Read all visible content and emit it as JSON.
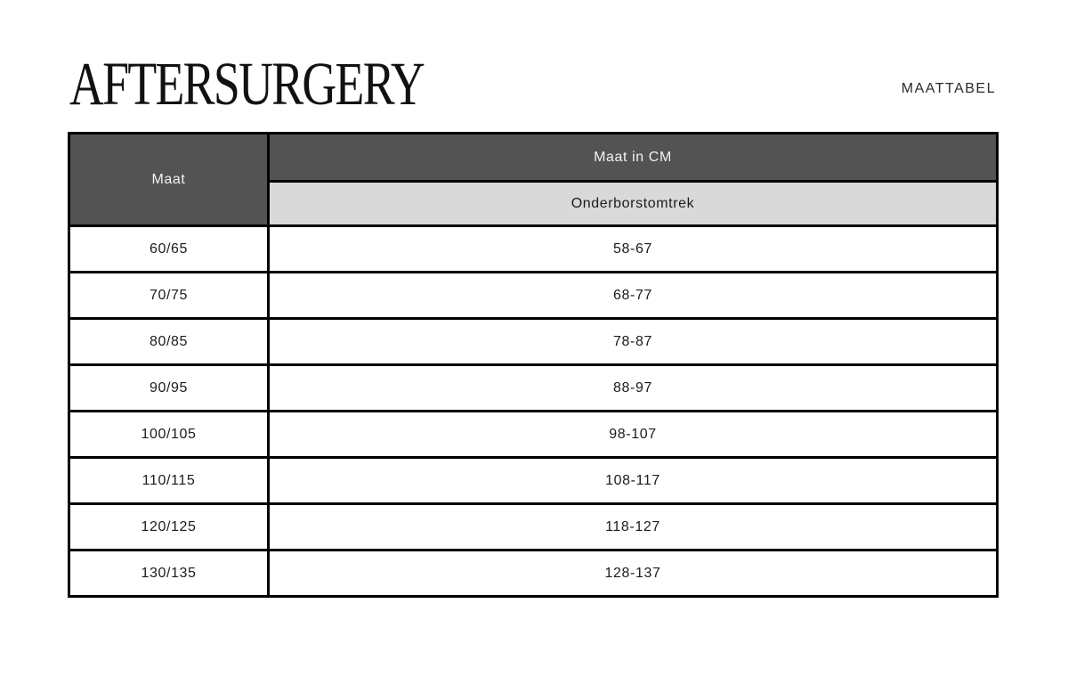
{
  "header": {
    "brand": "AFTERSURGERY",
    "page_label": "MAATTABEL"
  },
  "table": {
    "size_column_header": "Maat",
    "cm_group_header": "Maat in CM",
    "measure_subheader": "Onderborstomtrek",
    "rows": [
      {
        "size": "60/65",
        "range": "58-67"
      },
      {
        "size": "70/75",
        "range": "68-77"
      },
      {
        "size": "80/85",
        "range": "78-87"
      },
      {
        "size": "90/95",
        "range": "88-97"
      },
      {
        "size": "100/105",
        "range": "98-107"
      },
      {
        "size": "110/115",
        "range": "108-117"
      },
      {
        "size": "120/125",
        "range": "118-127"
      },
      {
        "size": "130/135",
        "range": "128-137"
      }
    ]
  },
  "colors": {
    "header_dark_bg": "#535353",
    "header_light_bg": "#d9d9d9",
    "border": "#000000",
    "header_text": "#f2f2f2",
    "body_text": "#1c1c1c",
    "page_bg": "#ffffff"
  }
}
